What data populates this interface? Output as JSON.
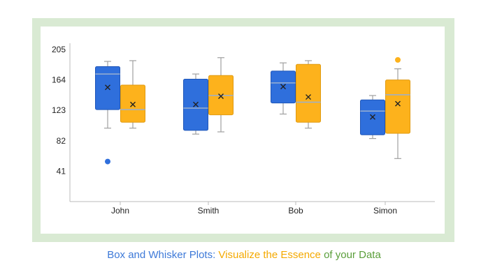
{
  "colors": {
    "frame": "#d9ead3",
    "blue": "#2f6fdc",
    "blue_edge": "#1f56b8",
    "orange": "#fdb21c",
    "orange_edge": "#e09a10",
    "median_line": "#9ab0d0",
    "whisker": "#a0a0a0",
    "axis": "#bbbbbb",
    "caption_blue": "#3d79d8",
    "caption_orange": "#f4a900",
    "caption_green": "#5a9e3a"
  },
  "caption": {
    "part1": "Box and Whisker Plots:",
    "part2": " Visualize the Essence",
    "part3": " of your ",
    "part4": "Data"
  },
  "chart_data": {
    "type": "box",
    "title": "",
    "xlabel": "",
    "ylabel": "",
    "categories": [
      "John",
      "Smith",
      "Bob",
      "Simon"
    ],
    "ylim": [
      0,
      205
    ],
    "yticks": [
      41,
      82,
      123,
      164,
      205
    ],
    "grid": false,
    "series": [
      {
        "color": "blue",
        "boxes": [
          {
            "min": 99,
            "q1": 124,
            "median": 172,
            "q3": 182,
            "max": 189,
            "mean": 154,
            "outliers": [
              54
            ]
          },
          {
            "min": 91,
            "q1": 96,
            "median": 126,
            "q3": 165,
            "max": 172,
            "mean": 131,
            "outliers": []
          },
          {
            "min": 118,
            "q1": 133,
            "median": 160,
            "q3": 176,
            "max": 187,
            "mean": 155,
            "outliers": []
          },
          {
            "min": 85,
            "q1": 90,
            "median": 122,
            "q3": 137,
            "max": 143,
            "mean": 114,
            "outliers": []
          }
        ]
      },
      {
        "color": "orange",
        "boxes": [
          {
            "min": 99,
            "q1": 107,
            "median": 124,
            "q3": 157,
            "max": 190,
            "mean": 131,
            "outliers": []
          },
          {
            "min": 94,
            "q1": 117,
            "median": 143,
            "q3": 170,
            "max": 194,
            "mean": 142,
            "outliers": []
          },
          {
            "min": 99,
            "q1": 107,
            "median": 134,
            "q3": 185,
            "max": 190,
            "mean": 141,
            "outliers": []
          },
          {
            "min": 58,
            "q1": 92,
            "median": 144,
            "q3": 164,
            "max": 179,
            "mean": 132,
            "outliers": [
              191
            ]
          }
        ]
      }
    ]
  }
}
